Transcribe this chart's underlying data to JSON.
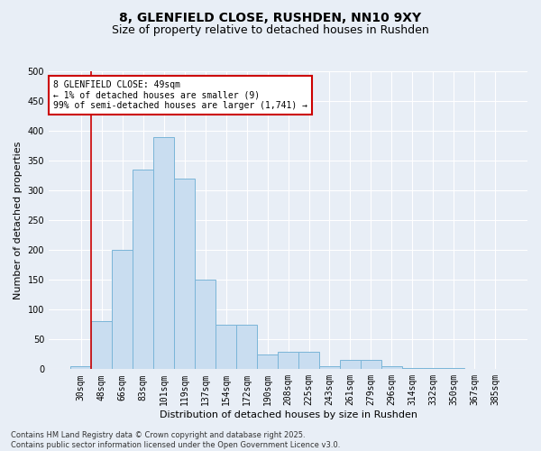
{
  "title_line1": "8, GLENFIELD CLOSE, RUSHDEN, NN10 9XY",
  "title_line2": "Size of property relative to detached houses in Rushden",
  "xlabel": "Distribution of detached houses by size in Rushden",
  "ylabel": "Number of detached properties",
  "categories": [
    "30sqm",
    "48sqm",
    "66sqm",
    "83sqm",
    "101sqm",
    "119sqm",
    "137sqm",
    "154sqm",
    "172sqm",
    "190sqm",
    "208sqm",
    "225sqm",
    "243sqm",
    "261sqm",
    "279sqm",
    "296sqm",
    "314sqm",
    "332sqm",
    "350sqm",
    "367sqm",
    "385sqm"
  ],
  "values": [
    5,
    80,
    200,
    335,
    390,
    320,
    150,
    75,
    75,
    25,
    30,
    30,
    5,
    15,
    15,
    5,
    2,
    2,
    2,
    1,
    1
  ],
  "bar_color": "#c9ddf0",
  "bar_edge_color": "#7ab5d8",
  "annotation_box_text": "8 GLENFIELD CLOSE: 49sqm\n← 1% of detached houses are smaller (9)\n99% of semi-detached houses are larger (1,741) →",
  "annotation_box_color": "#ffffff",
  "annotation_box_edge_color": "#cc0000",
  "vline_x_index": 1,
  "vline_color": "#cc0000",
  "ylim": [
    0,
    500
  ],
  "yticks": [
    0,
    50,
    100,
    150,
    200,
    250,
    300,
    350,
    400,
    450,
    500
  ],
  "footnote": "Contains HM Land Registry data © Crown copyright and database right 2025.\nContains public sector information licensed under the Open Government Licence v3.0.",
  "background_color": "#e8eef6",
  "plot_background_color": "#e8eef6",
  "grid_color": "#ffffff",
  "title_fontsize": 10,
  "subtitle_fontsize": 9,
  "tick_fontsize": 7,
  "ylabel_fontsize": 8,
  "xlabel_fontsize": 8,
  "annot_fontsize": 7,
  "footnote_fontsize": 6
}
